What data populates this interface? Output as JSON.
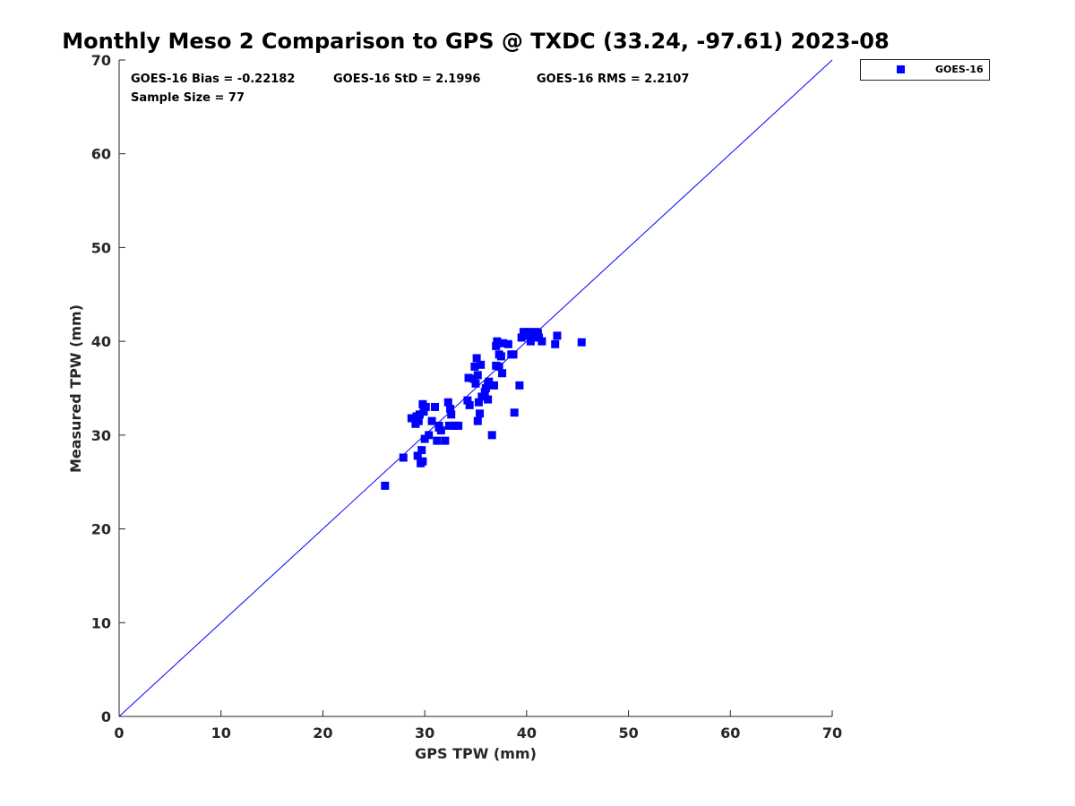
{
  "chart_data": {
    "type": "scatter",
    "title": "Monthly Meso 2 Comparison to GPS @ TXDC (33.24, -97.61) 2023-08",
    "xlabel": "GPS TPW (mm)",
    "ylabel": "Measured TPW (mm)",
    "xlim": [
      0,
      70
    ],
    "ylim": [
      0,
      70
    ],
    "xticks": [
      "0",
      "10",
      "20",
      "30",
      "40",
      "50",
      "60",
      "70"
    ],
    "yticks": [
      "0",
      "10",
      "20",
      "30",
      "40",
      "50",
      "60",
      "70"
    ],
    "grid": false,
    "legend_position": "outside-top-right",
    "reference_line": {
      "name": "1:1 line",
      "x": [
        0,
        70
      ],
      "y": [
        0,
        70
      ],
      "color": "#0000ff"
    },
    "annotations": {
      "bias": "GOES-16 Bias = -0.22182",
      "std": "GOES-16 StD = 2.1996",
      "rms": "GOES-16 RMS = 2.2107",
      "sample_size": "Sample Size = 77"
    },
    "series": [
      {
        "name": "GOES-16",
        "color": "#0000ff",
        "marker": "square",
        "points": [
          [
            26.1,
            24.6
          ],
          [
            27.9,
            27.6
          ],
          [
            28.7,
            31.8
          ],
          [
            29.1,
            31.2
          ],
          [
            29.2,
            32.0
          ],
          [
            29.3,
            27.8
          ],
          [
            29.4,
            31.5
          ],
          [
            29.5,
            32.2
          ],
          [
            29.6,
            27.0
          ],
          [
            29.7,
            28.4
          ],
          [
            29.8,
            27.2
          ],
          [
            29.8,
            33.3
          ],
          [
            29.9,
            32.5
          ],
          [
            30.0,
            29.6
          ],
          [
            30.1,
            33.0
          ],
          [
            30.4,
            30.0
          ],
          [
            30.7,
            31.5
          ],
          [
            31.0,
            33.0
          ],
          [
            31.2,
            29.4
          ],
          [
            31.4,
            30.8
          ],
          [
            31.6,
            30.5
          ],
          [
            32.0,
            29.4
          ],
          [
            32.3,
            33.5
          ],
          [
            32.4,
            31.0
          ],
          [
            32.5,
            32.8
          ],
          [
            32.6,
            32.2
          ],
          [
            32.9,
            31.0
          ],
          [
            33.3,
            31.0
          ],
          [
            34.2,
            33.7
          ],
          [
            34.3,
            36.1
          ],
          [
            34.4,
            33.2
          ],
          [
            34.8,
            36.0
          ],
          [
            34.9,
            37.3
          ],
          [
            35.0,
            35.5
          ],
          [
            35.1,
            38.2
          ],
          [
            35.2,
            31.5
          ],
          [
            35.2,
            36.4
          ],
          [
            35.3,
            33.5
          ],
          [
            35.4,
            32.3
          ],
          [
            35.5,
            37.5
          ],
          [
            35.6,
            34.1
          ],
          [
            35.9,
            34.6
          ],
          [
            36.0,
            35.0
          ],
          [
            36.2,
            35.4
          ],
          [
            36.2,
            33.8
          ],
          [
            36.6,
            30.0
          ],
          [
            36.8,
            35.3
          ],
          [
            37.0,
            37.4
          ],
          [
            37.0,
            39.5
          ],
          [
            37.1,
            40.0
          ],
          [
            37.3,
            37.3
          ],
          [
            37.3,
            38.6
          ],
          [
            37.5,
            38.4
          ],
          [
            37.6,
            36.6
          ],
          [
            37.7,
            39.8
          ],
          [
            38.2,
            39.7
          ],
          [
            38.5,
            38.6
          ],
          [
            38.7,
            38.6
          ],
          [
            38.8,
            32.4
          ],
          [
            39.3,
            35.3
          ],
          [
            39.5,
            40.4
          ],
          [
            39.7,
            41.0
          ],
          [
            39.9,
            40.6
          ],
          [
            40.2,
            41.0
          ],
          [
            40.4,
            40.0
          ],
          [
            40.6,
            40.6
          ],
          [
            40.9,
            41.0
          ],
          [
            41.1,
            40.9
          ],
          [
            41.2,
            40.4
          ],
          [
            41.5,
            40.0
          ],
          [
            42.8,
            39.7
          ],
          [
            43.0,
            40.6
          ],
          [
            45.4,
            39.9
          ],
          [
            36.3,
            35.7
          ],
          [
            33.0,
            31.0
          ],
          [
            31.4,
            31.0
          ],
          [
            29.0,
            31.8
          ]
        ]
      }
    ]
  }
}
